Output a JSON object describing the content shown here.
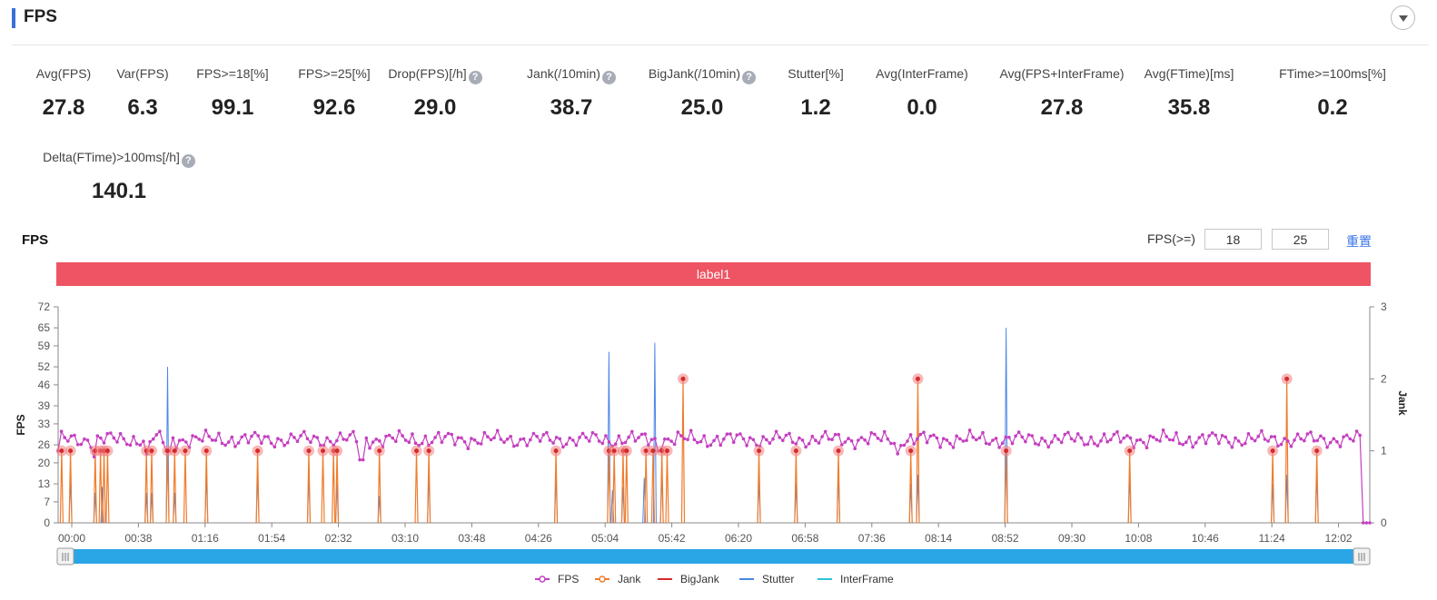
{
  "header": {
    "title": "FPS"
  },
  "metrics": [
    {
      "label": "Avg(FPS)",
      "value": "27.8",
      "help": false
    },
    {
      "label": "Var(FPS)",
      "value": "6.3",
      "help": false
    },
    {
      "label": "FPS>=18[%]",
      "value": "99.1",
      "help": false
    },
    {
      "label": "FPS>=25[%]",
      "value": "92.6",
      "help": false
    },
    {
      "label": "Drop(FPS)[/h]",
      "value": "29.0",
      "help": true
    },
    {
      "label": "Jank(/10min)",
      "value": "38.7",
      "help": true
    },
    {
      "label": "BigJank(/10min)",
      "value": "25.0",
      "help": true
    },
    {
      "label": "Stutter[%]",
      "value": "1.2",
      "help": false
    },
    {
      "label": "Avg(InterFrame)",
      "value": "0.0",
      "help": false
    },
    {
      "label": "Avg(FPS+InterFrame)",
      "value": "27.8",
      "help": false
    },
    {
      "label": "Avg(FTime)[ms]",
      "value": "35.8",
      "help": false
    },
    {
      "label": "FTime>=100ms[%]",
      "value": "0.2",
      "help": false
    },
    {
      "label": "Delta(FTime)>100ms[/h]",
      "value": "140.1",
      "help": true
    }
  ],
  "help_glyph": "?",
  "chart_panel": {
    "title": "FPS",
    "threshold_label": "FPS(>=)",
    "threshold_1": "18",
    "threshold_2": "25",
    "reset_label": "重置",
    "band_label": "label1"
  },
  "chart_data": {
    "type": "line",
    "yaxis_left": {
      "label": "FPS",
      "ticks": [
        0,
        7,
        13,
        20,
        26,
        33,
        39,
        46,
        52,
        59,
        65,
        72
      ],
      "range": [
        0,
        72
      ]
    },
    "yaxis_right": {
      "label": "Jank",
      "ticks": [
        0,
        1,
        2,
        3
      ],
      "range": [
        0,
        3
      ]
    },
    "x_ticks": [
      "00:00",
      "00:38",
      "01:16",
      "01:54",
      "02:32",
      "03:10",
      "03:48",
      "04:26",
      "05:04",
      "05:42",
      "06:20",
      "06:58",
      "07:36",
      "08:14",
      "08:52",
      "09:30",
      "10:08",
      "10:46",
      "11:24",
      "12:02"
    ],
    "x_range_seconds": [
      0,
      743
    ],
    "legend": [
      "FPS",
      "Jank",
      "BigJank",
      "Stutter",
      "InterFrame"
    ],
    "colors": {
      "FPS": "#c43fc0",
      "Jank": "#f07c2c",
      "BigJank": "#d62a2a",
      "Stutter": "#4a86e8",
      "InterFrame": "#2ec4d6",
      "marker": "#f08080",
      "axis": "#888888",
      "slider": "#2aa5e6"
    },
    "fps_level": 27.8,
    "fps_dips": [
      {
        "t": 0,
        "v": 24
      },
      {
        "t": 20,
        "v": 22
      },
      {
        "t": 50,
        "v": 23
      },
      {
        "t": 62,
        "v": 24
      },
      {
        "t": 172,
        "v": 21
      },
      {
        "t": 340,
        "v": 24
      },
      {
        "t": 475,
        "v": 23
      },
      {
        "t": 740,
        "v": 0
      }
    ],
    "jank_events": [
      {
        "t": 2,
        "v": 1
      },
      {
        "t": 7,
        "v": 1
      },
      {
        "t": 21,
        "v": 1
      },
      {
        "t": 24,
        "v": 1
      },
      {
        "t": 26,
        "v": 1
      },
      {
        "t": 28,
        "v": 1
      },
      {
        "t": 50,
        "v": 1
      },
      {
        "t": 53,
        "v": 1
      },
      {
        "t": 62,
        "v": 1
      },
      {
        "t": 66,
        "v": 1
      },
      {
        "t": 72,
        "v": 1
      },
      {
        "t": 84,
        "v": 1
      },
      {
        "t": 113,
        "v": 1
      },
      {
        "t": 142,
        "v": 1
      },
      {
        "t": 150,
        "v": 1
      },
      {
        "t": 156,
        "v": 1
      },
      {
        "t": 158,
        "v": 1
      },
      {
        "t": 182,
        "v": 1
      },
      {
        "t": 203,
        "v": 1
      },
      {
        "t": 210,
        "v": 1
      },
      {
        "t": 282,
        "v": 1
      },
      {
        "t": 312,
        "v": 1
      },
      {
        "t": 315,
        "v": 1
      },
      {
        "t": 320,
        "v": 1
      },
      {
        "t": 322,
        "v": 1
      },
      {
        "t": 333,
        "v": 1
      },
      {
        "t": 337,
        "v": 1
      },
      {
        "t": 342,
        "v": 1
      },
      {
        "t": 345,
        "v": 1
      },
      {
        "t": 354,
        "v": 2
      },
      {
        "t": 397,
        "v": 1
      },
      {
        "t": 418,
        "v": 1
      },
      {
        "t": 442,
        "v": 1
      },
      {
        "t": 483,
        "v": 1
      },
      {
        "t": 487,
        "v": 2
      },
      {
        "t": 537,
        "v": 1
      },
      {
        "t": 607,
        "v": 1
      },
      {
        "t": 688,
        "v": 1
      },
      {
        "t": 696,
        "v": 2
      },
      {
        "t": 713,
        "v": 1
      }
    ],
    "stutter_events": [
      {
        "t": 7,
        "v": 15
      },
      {
        "t": 21,
        "v": 10
      },
      {
        "t": 25,
        "v": 12
      },
      {
        "t": 50,
        "v": 10
      },
      {
        "t": 53,
        "v": 10
      },
      {
        "t": 62,
        "v": 52
      },
      {
        "t": 66,
        "v": 10
      },
      {
        "t": 84,
        "v": 16
      },
      {
        "t": 113,
        "v": 16
      },
      {
        "t": 142,
        "v": 16
      },
      {
        "t": 158,
        "v": 13
      },
      {
        "t": 182,
        "v": 9
      },
      {
        "t": 210,
        "v": 16
      },
      {
        "t": 282,
        "v": 16
      },
      {
        "t": 312,
        "v": 57
      },
      {
        "t": 314,
        "v": 11
      },
      {
        "t": 320,
        "v": 12
      },
      {
        "t": 332,
        "v": 15
      },
      {
        "t": 338,
        "v": 60
      },
      {
        "t": 342,
        "v": 16
      },
      {
        "t": 397,
        "v": 15
      },
      {
        "t": 418,
        "v": 13
      },
      {
        "t": 442,
        "v": 16
      },
      {
        "t": 483,
        "v": 13
      },
      {
        "t": 487,
        "v": 16
      },
      {
        "t": 537,
        "v": 65
      },
      {
        "t": 607,
        "v": 16
      },
      {
        "t": 688,
        "v": 13
      },
      {
        "t": 696,
        "v": 16
      },
      {
        "t": 713,
        "v": 16
      }
    ],
    "slider_range": [
      0,
      1
    ]
  }
}
